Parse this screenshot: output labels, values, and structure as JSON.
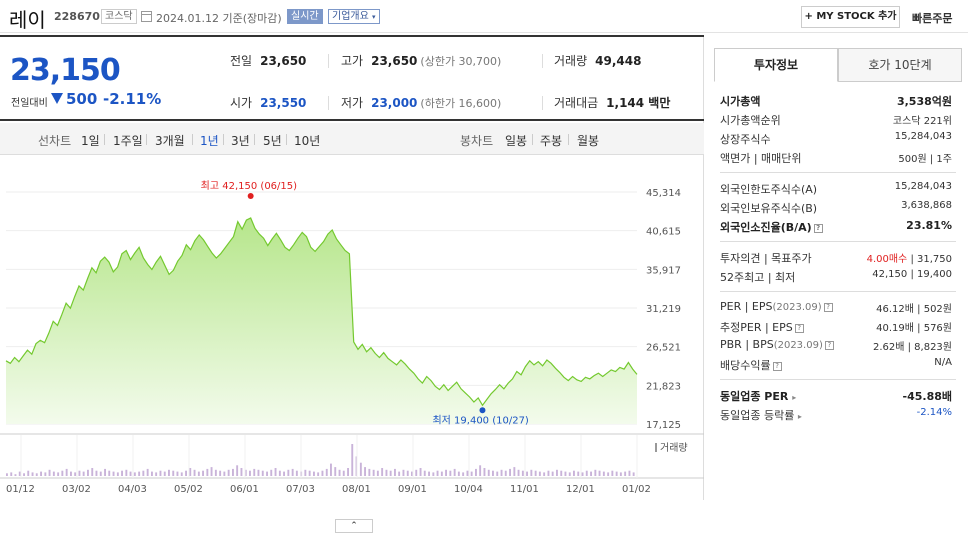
{
  "header": {
    "stock_name": "레이",
    "stock_code": "228670",
    "market": "코스닥",
    "date": "2024.01.12",
    "date_basis": "기준(장마감)",
    "realtime": "실시간",
    "company_overview": "기업개요",
    "my_stock_button": "+ MY STOCK 추가",
    "quick_order": "빠른주문"
  },
  "price": {
    "current": "23,150",
    "prev_label": "전일대비",
    "change": "500",
    "change_rate": "-2.11%"
  },
  "quote": {
    "prev_close_label": "전일",
    "prev_close": "23,650",
    "high_label": "고가",
    "high": "23,650",
    "upper_limit": "(상한가 30,700)",
    "volume_label": "거래량",
    "volume": "49,448",
    "open_label": "시가",
    "open": "23,550",
    "low_label": "저가",
    "low": "23,000",
    "lower_limit": "(하한가 16,600)",
    "amount_label": "거래대금",
    "amount": "1,144 백만"
  },
  "period_bar": {
    "line_label": "선차트",
    "periods": [
      "1일",
      "1주일",
      "3개월",
      "1년",
      "3년",
      "5년",
      "10년"
    ],
    "active": "1년",
    "candle_label": "봉차트",
    "candles": [
      "일봉",
      "주봉",
      "월봉"
    ]
  },
  "chart_data": {
    "type": "area",
    "yticks": [
      "45,314",
      "40,615",
      "35,917",
      "31,219",
      "26,521",
      "21,823",
      "17,125"
    ],
    "ylim": [
      17125,
      45314
    ],
    "xticks": [
      "01/12",
      "03/02",
      "04/03",
      "05/02",
      "06/01",
      "07/03",
      "08/01",
      "09/01",
      "10/04",
      "11/01",
      "12/01",
      "01/02"
    ],
    "high_annotation": "최고 42,150 (06/15)",
    "low_annotation": "최저 19,400 (10/27)",
    "volume_label": "거래량",
    "colors": {
      "line": "#74c92f",
      "fill_top": "#b6e68b",
      "fill_bottom": "#f3fbec",
      "high": "#e02020",
      "low": "#1c55c4"
    },
    "price_values": [
      24800,
      24500,
      25200,
      24700,
      25400,
      26100,
      25600,
      26900,
      27300,
      27000,
      28200,
      29600,
      29100,
      30400,
      31800,
      31200,
      32600,
      33900,
      33400,
      34800,
      36100,
      35500,
      36900,
      37400,
      36800,
      35600,
      36200,
      37800,
      38200,
      37100,
      37900,
      38600,
      37300,
      36500,
      35900,
      36800,
      37500,
      36400,
      35300,
      35800,
      36900,
      37600,
      38900,
      38300,
      39400,
      40100,
      39500,
      38700,
      37900,
      37300,
      37800,
      38500,
      39200,
      39900,
      41700,
      40800,
      41900,
      42150,
      40900,
      40200,
      39700,
      38800,
      39600,
      40300,
      39500,
      38600,
      38200,
      38900,
      39700,
      40400,
      39900,
      38600,
      38100,
      38700,
      39300,
      40200,
      40700,
      39600,
      38900,
      38200,
      37800,
      27100,
      26200,
      26800,
      25900,
      26400,
      25700,
      25200,
      25800,
      25100,
      24700,
      24300,
      24900,
      24400,
      23800,
      23300,
      22600,
      22100,
      22900,
      22400,
      21700,
      21300,
      21900,
      21200,
      21700,
      22200,
      21400,
      20900,
      20400,
      19800,
      20300,
      19400,
      20100,
      20800,
      21300,
      21900,
      21400,
      22100,
      22600,
      23500,
      23100,
      24100,
      24800,
      24300,
      24700,
      24200,
      24900,
      24500,
      23900,
      23400,
      22800,
      22400,
      22900,
      22500,
      22300,
      22800,
      22600,
      23000,
      23300,
      22900,
      23300,
      23700,
      23500,
      24000,
      23800,
      24600,
      23800,
      23150
    ],
    "volume_values": [
      3,
      4,
      2,
      5,
      3,
      6,
      4,
      3,
      5,
      4,
      7,
      5,
      4,
      6,
      8,
      5,
      4,
      6,
      5,
      7,
      9,
      6,
      5,
      8,
      6,
      5,
      4,
      6,
      7,
      5,
      4,
      5,
      6,
      8,
      5,
      4,
      6,
      5,
      7,
      6,
      5,
      4,
      6,
      9,
      7,
      5,
      6,
      8,
      10,
      7,
      6,
      5,
      7,
      8,
      12,
      9,
      7,
      6,
      8,
      7,
      6,
      5,
      7,
      9,
      6,
      5,
      7,
      8,
      6,
      5,
      7,
      6,
      5,
      4,
      6,
      8,
      14,
      10,
      7,
      6,
      9,
      36,
      22,
      15,
      10,
      8,
      7,
      6,
      9,
      7,
      6,
      8,
      5,
      7,
      6,
      5,
      7,
      9,
      6,
      5,
      4,
      6,
      5,
      7,
      6,
      8,
      5,
      4,
      6,
      5,
      8,
      12,
      9,
      7,
      6,
      5,
      7,
      6,
      8,
      10,
      7,
      6,
      5,
      7,
      6,
      5,
      4,
      6,
      5,
      7,
      6,
      5,
      4,
      6,
      5,
      4,
      6,
      5,
      7,
      6,
      5,
      4,
      6,
      5,
      4,
      5,
      6,
      4
    ]
  },
  "side": {
    "tab_info": "투자정보",
    "tab_hoga": "호가 10단계",
    "market_cap_label": "시가총액",
    "market_cap": "3,538억원",
    "rank_label": "시가총액순위",
    "rank": "코스닥 221위",
    "shares_label": "상장주식수",
    "shares": "15,284,043",
    "par_label": "액면가 | 매매단위",
    "par": "500원 | 1주",
    "foreign_limit_label": "외국인한도주식수(A)",
    "foreign_limit": "15,284,043",
    "foreign_hold_label": "외국인보유주식수(B)",
    "foreign_hold": "3,638,868",
    "foreign_rate_label": "외국인소진율(B/A)",
    "foreign_rate": "23.81%",
    "opinion_label": "투자의견 | 목표주가",
    "opinion": "4.00매수",
    "target": "| 31,750",
    "w52_label": "52주최고 | 최저",
    "w52": "42,150 | 19,400",
    "per_label": "PER | EPS",
    "per_period": "(2023.09)",
    "per": "46.12배 | 502원",
    "est_per_label": "추정PER | EPS",
    "est_per": "40.19배 | 576원",
    "pbr_label": "PBR | BPS",
    "pbr_period": "(2023.09)",
    "pbr": "2.62배 | 8,823원",
    "div_label": "배당수익률",
    "div": "N/A",
    "sector_per_label": "동일업종 PER",
    "sector_per": "-45.88배",
    "sector_rate_label": "동일업종 등락률",
    "sector_rate": "-2.14%"
  },
  "collapse": "⌃"
}
